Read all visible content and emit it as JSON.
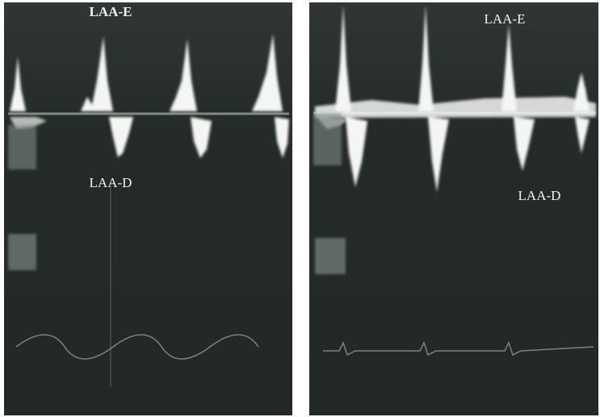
{
  "panels": [
    {
      "top_label": "LAA-E",
      "bottom_label": "LAA-D"
    },
    {
      "top_label": "LAA-E",
      "bottom_label": "LAA-D"
    }
  ]
}
